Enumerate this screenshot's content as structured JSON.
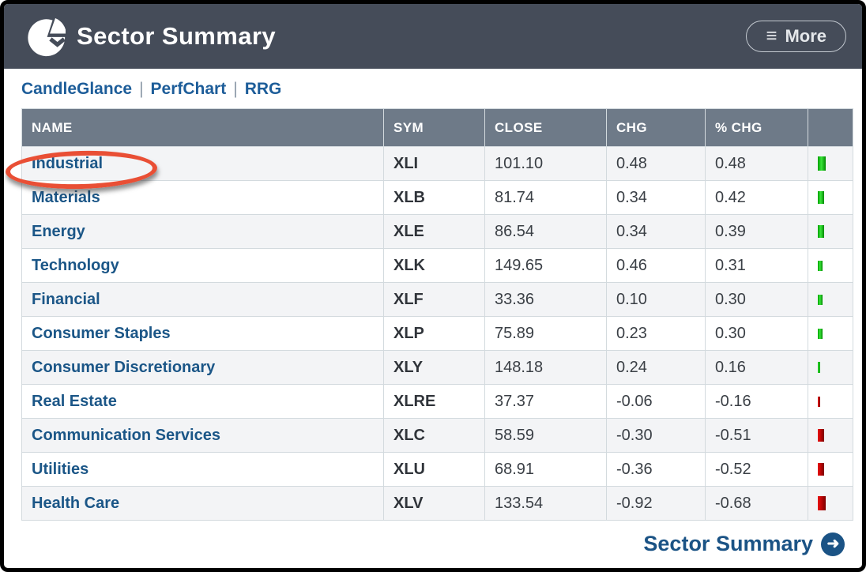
{
  "header": {
    "title": "Sector Summary",
    "more_label": "More",
    "bg_color": "#454c59"
  },
  "icons": {
    "menu": "≡",
    "arrow_right": "➜",
    "logo": "pie-chart-logo"
  },
  "nav": {
    "links": [
      "CandleGlance",
      "PerfChart",
      "RRG"
    ],
    "separator": "|"
  },
  "table": {
    "columns": [
      "NAME",
      "SYM",
      "CLOSE",
      "CHG",
      "% CHG",
      ""
    ],
    "rows": [
      {
        "name": "Industrial",
        "sym": "XLI",
        "close": "101.10",
        "chg": "0.48",
        "pct_chg": "0.48",
        "bar": {
          "color": "green",
          "width": 10,
          "height": 18
        }
      },
      {
        "name": "Materials",
        "sym": "XLB",
        "close": "81.74",
        "chg": "0.34",
        "pct_chg": "0.42",
        "bar": {
          "color": "green",
          "width": 8,
          "height": 16
        }
      },
      {
        "name": "Energy",
        "sym": "XLE",
        "close": "86.54",
        "chg": "0.34",
        "pct_chg": "0.39",
        "bar": {
          "color": "green",
          "width": 8,
          "height": 16
        }
      },
      {
        "name": "Technology",
        "sym": "XLK",
        "close": "149.65",
        "chg": "0.46",
        "pct_chg": "0.31",
        "bar": {
          "color": "green",
          "width": 6,
          "height": 13
        }
      },
      {
        "name": "Financial",
        "sym": "XLF",
        "close": "33.36",
        "chg": "0.10",
        "pct_chg": "0.30",
        "bar": {
          "color": "green",
          "width": 6,
          "height": 13
        }
      },
      {
        "name": "Consumer Staples",
        "sym": "XLP",
        "close": "75.89",
        "chg": "0.23",
        "pct_chg": "0.30",
        "bar": {
          "color": "green",
          "width": 6,
          "height": 13
        }
      },
      {
        "name": "Consumer Discretionary",
        "sym": "XLY",
        "close": "148.18",
        "chg": "0.24",
        "pct_chg": "0.16",
        "bar": {
          "color": "green",
          "width": 3,
          "height": 14
        }
      },
      {
        "name": "Real Estate",
        "sym": "XLRE",
        "close": "37.37",
        "chg": "-0.06",
        "pct_chg": "-0.16",
        "bar": {
          "color": "red",
          "width": 3,
          "height": 13
        }
      },
      {
        "name": "Communication Services",
        "sym": "XLC",
        "close": "58.59",
        "chg": "-0.30",
        "pct_chg": "-0.51",
        "bar": {
          "color": "red",
          "width": 8,
          "height": 16
        }
      },
      {
        "name": "Utilities",
        "sym": "XLU",
        "close": "68.91",
        "chg": "-0.36",
        "pct_chg": "-0.52",
        "bar": {
          "color": "red",
          "width": 8,
          "height": 16
        }
      },
      {
        "name": "Health Care",
        "sym": "XLV",
        "close": "133.54",
        "chg": "-0.92",
        "pct_chg": "-0.68",
        "bar": {
          "color": "red",
          "width": 10,
          "height": 18
        }
      }
    ]
  },
  "annotation": {
    "shape": "ellipse",
    "color": "#e94f35",
    "target": "Industrial"
  },
  "footer": {
    "link_label": "Sector Summary"
  }
}
